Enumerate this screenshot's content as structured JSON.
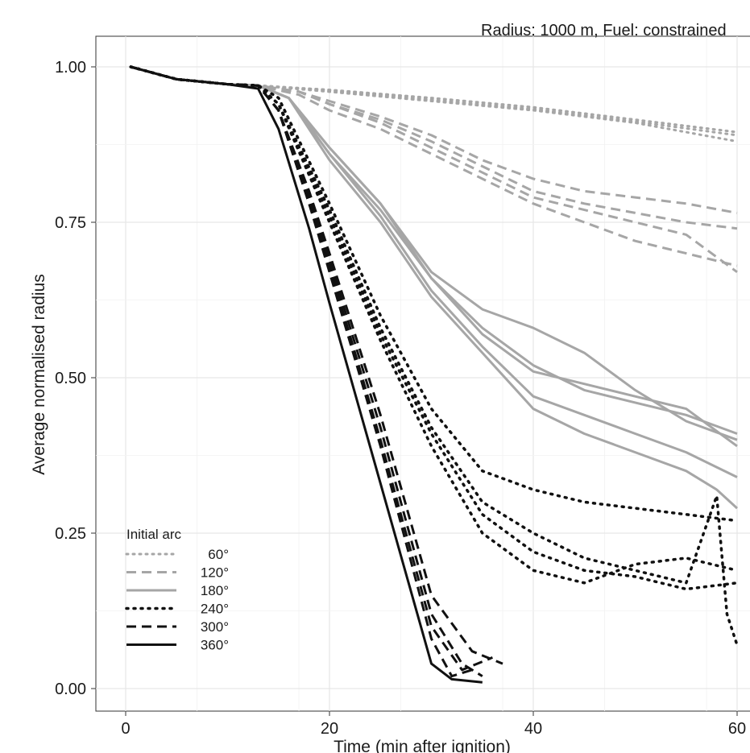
{
  "chart_data": {
    "type": "line",
    "title": "Radius: 1000 m, Fuel: constrained",
    "xlabel": "Time (min after ignition)",
    "ylabel": "Average normalised radius",
    "xlim": [
      -3,
      61
    ],
    "ylim": [
      -0.04,
      1.05
    ],
    "x_ticks": [
      0,
      20,
      40,
      60
    ],
    "x_tick_labels": [
      "0",
      "20",
      "40",
      "60"
    ],
    "y_ticks": [
      0,
      0.25,
      0.5,
      0.75,
      1.0
    ],
    "y_tick_labels": [
      "0.00",
      "0.25",
      "0.50",
      "0.75",
      "1.00"
    ],
    "grid": true,
    "legend": {
      "title": "Initial arc",
      "position": "bottom-left",
      "entries": [
        "60°",
        "120°",
        "180°",
        "240°",
        "300°",
        "360°"
      ]
    },
    "styles": {
      "60°": {
        "color": "#a6a6a6",
        "dash": "2,6",
        "width": 3
      },
      "120°": {
        "color": "#a6a6a6",
        "dash": "12,7",
        "width": 3
      },
      "180°": {
        "color": "#a6a6a6",
        "dash": "",
        "width": 3
      },
      "240°": {
        "color": "#111111",
        "dash": "2,7",
        "width": 3.5
      },
      "300°": {
        "color": "#111111",
        "dash": "12,7",
        "width": 3
      },
      "360°": {
        "color": "#111111",
        "dash": "",
        "width": 3
      }
    },
    "series": [
      {
        "name": "60°",
        "x": [
          0.5,
          5,
          10,
          13,
          20,
          30,
          40,
          50,
          60
        ],
        "y": [
          1.0,
          0.98,
          0.972,
          0.97,
          0.96,
          0.945,
          0.93,
          0.91,
          0.88
        ]
      },
      {
        "name": "60°",
        "x": [
          0.5,
          5,
          10,
          13,
          20,
          30,
          40,
          50,
          60
        ],
        "y": [
          1.0,
          0.98,
          0.972,
          0.97,
          0.963,
          0.95,
          0.935,
          0.915,
          0.895
        ]
      },
      {
        "name": "60°",
        "x": [
          0.5,
          5,
          10,
          13,
          20,
          30,
          40,
          50,
          60
        ],
        "y": [
          1.0,
          0.98,
          0.972,
          0.97,
          0.962,
          0.947,
          0.932,
          0.912,
          0.89
        ]
      },
      {
        "name": "120°",
        "x": [
          0.5,
          5,
          10,
          13,
          17,
          20,
          25,
          30,
          35,
          40,
          45,
          50,
          55,
          60
        ],
        "y": [
          1.0,
          0.98,
          0.972,
          0.97,
          0.96,
          0.94,
          0.91,
          0.87,
          0.83,
          0.79,
          0.77,
          0.75,
          0.73,
          0.67
        ]
      },
      {
        "name": "120°",
        "x": [
          0.5,
          5,
          10,
          13,
          17,
          20,
          25,
          30,
          35,
          40,
          45,
          50,
          55,
          60
        ],
        "y": [
          1.0,
          0.98,
          0.972,
          0.97,
          0.96,
          0.945,
          0.92,
          0.89,
          0.85,
          0.82,
          0.8,
          0.79,
          0.78,
          0.765
        ]
      },
      {
        "name": "120°",
        "x": [
          0.5,
          5,
          10,
          13,
          17,
          20,
          25,
          30,
          35,
          40,
          45,
          50,
          55,
          60
        ],
        "y": [
          1.0,
          0.98,
          0.972,
          0.97,
          0.96,
          0.94,
          0.915,
          0.88,
          0.84,
          0.8,
          0.78,
          0.765,
          0.75,
          0.74
        ]
      },
      {
        "name": "120°",
        "x": [
          0.5,
          5,
          10,
          13,
          17,
          20,
          25,
          30,
          35,
          40,
          45,
          50,
          55,
          60
        ],
        "y": [
          1.0,
          0.98,
          0.972,
          0.97,
          0.955,
          0.93,
          0.9,
          0.86,
          0.82,
          0.78,
          0.75,
          0.72,
          0.7,
          0.68
        ]
      },
      {
        "name": "180°",
        "x": [
          0.5,
          5,
          10,
          13,
          16,
          20,
          25,
          30,
          35,
          40,
          45,
          50,
          55,
          60
        ],
        "y": [
          1.0,
          0.98,
          0.972,
          0.97,
          0.95,
          0.87,
          0.78,
          0.66,
          0.58,
          0.52,
          0.48,
          0.46,
          0.44,
          0.41
        ]
      },
      {
        "name": "180°",
        "x": [
          0.5,
          5,
          10,
          13,
          16,
          20,
          25,
          30,
          35,
          40,
          45,
          50,
          55,
          60
        ],
        "y": [
          1.0,
          0.98,
          0.972,
          0.97,
          0.95,
          0.87,
          0.78,
          0.67,
          0.61,
          0.58,
          0.54,
          0.48,
          0.43,
          0.4
        ]
      },
      {
        "name": "180°",
        "x": [
          0.5,
          5,
          10,
          13,
          16,
          20,
          25,
          30,
          35,
          40,
          45,
          50,
          55,
          60
        ],
        "y": [
          1.0,
          0.98,
          0.972,
          0.97,
          0.95,
          0.86,
          0.77,
          0.66,
          0.57,
          0.51,
          0.49,
          0.47,
          0.45,
          0.39
        ]
      },
      {
        "name": "180°",
        "x": [
          0.5,
          5,
          10,
          13,
          16,
          20,
          25,
          30,
          35,
          40,
          45,
          50,
          55,
          60
        ],
        "y": [
          1.0,
          0.98,
          0.972,
          0.97,
          0.95,
          0.86,
          0.76,
          0.64,
          0.55,
          0.47,
          0.44,
          0.41,
          0.38,
          0.34
        ]
      },
      {
        "name": "180°",
        "x": [
          0.5,
          5,
          10,
          13,
          16,
          20,
          25,
          30,
          35,
          40,
          45,
          50,
          55,
          58,
          60
        ],
        "y": [
          1.0,
          0.98,
          0.972,
          0.97,
          0.95,
          0.85,
          0.75,
          0.63,
          0.54,
          0.45,
          0.41,
          0.38,
          0.35,
          0.32,
          0.29
        ]
      },
      {
        "name": "240°",
        "x": [
          0.5,
          5,
          10,
          13,
          15,
          20,
          25,
          30,
          35,
          40,
          45,
          50,
          55,
          60
        ],
        "y": [
          1.0,
          0.98,
          0.972,
          0.97,
          0.95,
          0.78,
          0.6,
          0.45,
          0.35,
          0.32,
          0.3,
          0.29,
          0.28,
          0.27
        ]
      },
      {
        "name": "240°",
        "x": [
          0.5,
          5,
          10,
          13,
          15,
          20,
          25,
          30,
          35,
          40,
          45,
          50,
          55,
          58,
          59,
          60
        ],
        "y": [
          1.0,
          0.98,
          0.972,
          0.97,
          0.94,
          0.77,
          0.58,
          0.42,
          0.3,
          0.25,
          0.21,
          0.19,
          0.17,
          0.31,
          0.12,
          0.07
        ]
      },
      {
        "name": "240°",
        "x": [
          0.5,
          5,
          10,
          13,
          15,
          20,
          25,
          30,
          35,
          40,
          45,
          50,
          55,
          60
        ],
        "y": [
          1.0,
          0.98,
          0.972,
          0.97,
          0.94,
          0.76,
          0.57,
          0.41,
          0.28,
          0.22,
          0.19,
          0.18,
          0.16,
          0.17
        ]
      },
      {
        "name": "240°",
        "x": [
          0.5,
          5,
          10,
          13,
          15,
          20,
          25,
          30,
          35,
          40,
          45,
          50,
          55,
          60
        ],
        "y": [
          1.0,
          0.98,
          0.972,
          0.97,
          0.94,
          0.75,
          0.56,
          0.39,
          0.25,
          0.19,
          0.17,
          0.2,
          0.21,
          0.19
        ]
      },
      {
        "name": "300°",
        "x": [
          0.5,
          5,
          10,
          13,
          15,
          18,
          20,
          25,
          30,
          33,
          36
        ],
        "y": [
          1.0,
          0.98,
          0.972,
          0.97,
          0.93,
          0.78,
          0.68,
          0.4,
          0.1,
          0.03,
          0.05
        ]
      },
      {
        "name": "300°",
        "x": [
          0.5,
          5,
          10,
          13,
          15,
          18,
          20,
          25,
          30,
          33,
          35
        ],
        "y": [
          1.0,
          0.98,
          0.972,
          0.97,
          0.93,
          0.79,
          0.69,
          0.42,
          0.12,
          0.04,
          0.02
        ]
      },
      {
        "name": "300°",
        "x": [
          0.5,
          5,
          10,
          13,
          15,
          18,
          20,
          25,
          30,
          34,
          37
        ],
        "y": [
          1.0,
          0.98,
          0.972,
          0.97,
          0.93,
          0.8,
          0.7,
          0.44,
          0.15,
          0.06,
          0.04
        ]
      },
      {
        "name": "300°",
        "x": [
          0.5,
          5,
          10,
          13,
          15,
          18,
          20,
          25,
          30,
          32,
          34
        ],
        "y": [
          1.0,
          0.98,
          0.972,
          0.97,
          0.93,
          0.78,
          0.67,
          0.39,
          0.08,
          0.02,
          0.03
        ]
      },
      {
        "name": "360°",
        "x": [
          0.5,
          5,
          10,
          13,
          15,
          18,
          20,
          25,
          30,
          32,
          35
        ],
        "y": [
          1.0,
          0.98,
          0.972,
          0.965,
          0.9,
          0.74,
          0.62,
          0.33,
          0.04,
          0.015,
          0.01
        ]
      }
    ]
  }
}
